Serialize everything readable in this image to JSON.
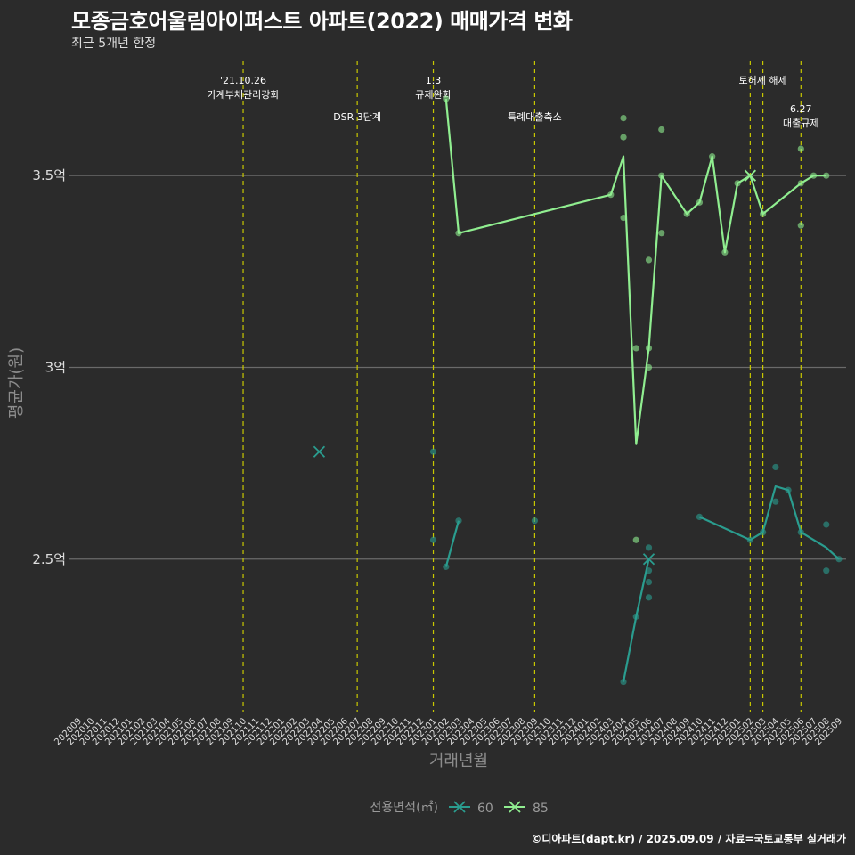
{
  "chart_data": {
    "type": "line",
    "title": "모종금호어울림아이퍼스트 아파트(2022) 매매가격 변화",
    "subtitle": "최근 5개년 한정",
    "xlabel": "거래년월",
    "ylabel": "평균가(원)",
    "caption": "©디아파트(dapt.kr) / 2025.09.09 / 자료=국토교통부 실거래가",
    "legend_title": "전용면적(㎡)",
    "categories": [
      "202009",
      "202010",
      "202011",
      "202012",
      "202101",
      "202102",
      "202103",
      "202104",
      "202105",
      "202106",
      "202107",
      "202108",
      "202109",
      "202110",
      "202111",
      "202112",
      "202201",
      "202202",
      "202203",
      "202204",
      "202205",
      "202206",
      "202207",
      "202208",
      "202209",
      "202210",
      "202211",
      "202212",
      "202301",
      "202302",
      "202303",
      "202304",
      "202305",
      "202306",
      "202307",
      "202308",
      "202309",
      "202310",
      "202311",
      "202312",
      "202401",
      "202402",
      "202403",
      "202404",
      "202405",
      "202406",
      "202407",
      "202408",
      "202409",
      "202410",
      "202411",
      "202412",
      "202501",
      "202502",
      "202503",
      "202504",
      "202505",
      "202506",
      "202507",
      "202508",
      "202509"
    ],
    "ylim": [
      2.1,
      3.8
    ],
    "yticks": [
      {
        "value": 2.5,
        "label": "2.5억"
      },
      {
        "value": 3.0,
        "label": "3억"
      },
      {
        "value": 3.5,
        "label": "3.5억"
      }
    ],
    "events": [
      {
        "x": "202110",
        "lines": [
          "'21.10.26",
          "가계부채관리강화"
        ],
        "row": 0
      },
      {
        "x": "202207",
        "lines": [
          "DSR 3단계"
        ],
        "row": 1
      },
      {
        "x": "202301",
        "lines": [
          "1.3",
          "규제완화"
        ],
        "row": 0
      },
      {
        "x": "202309",
        "lines": [
          "특례대출축소"
        ],
        "row": 1
      },
      {
        "x": "202502",
        "lines": [],
        "row": 0
      },
      {
        "x": "202503",
        "lines": [
          "토허제 해제"
        ],
        "row": 0
      },
      {
        "x": "202506",
        "lines": [
          "6.27",
          "대출규제"
        ],
        "row": 2
      }
    ],
    "series": [
      {
        "name": "60",
        "color": "#2a9d8f",
        "line": [
          [
            [
              "202302",
              2.48
            ],
            [
              "202303",
              2.6
            ]
          ],
          [
            [
              "202404",
              2.18
            ],
            [
              "202405",
              2.35
            ],
            [
              "202406",
              2.5
            ]
          ],
          [
            [
              "202410",
              2.61
            ],
            [
              "202502",
              2.55
            ],
            [
              "202503",
              2.57
            ],
            [
              "202504",
              2.69
            ],
            [
              "202505",
              2.68
            ],
            [
              "202506",
              2.57
            ],
            [
              "202508",
              2.53
            ],
            [
              "202509",
              2.5
            ]
          ]
        ],
        "points": [
          [
            "202301",
            2.78
          ],
          [
            "202301",
            2.55
          ],
          [
            "202302",
            2.48
          ],
          [
            "202303",
            2.6
          ],
          [
            "202309",
            2.6
          ],
          [
            "202404",
            2.18
          ],
          [
            "202405",
            2.35
          ],
          [
            "202406",
            2.53
          ],
          [
            "202406",
            2.47
          ],
          [
            "202406",
            2.44
          ],
          [
            "202406",
            2.4
          ],
          [
            "202410",
            2.61
          ],
          [
            "202502",
            2.55
          ],
          [
            "202503",
            2.57
          ],
          [
            "202504",
            2.74
          ],
          [
            "202504",
            2.65
          ],
          [
            "202505",
            2.68
          ],
          [
            "202506",
            2.57
          ],
          [
            "202508",
            2.59
          ],
          [
            "202508",
            2.47
          ],
          [
            "202509",
            2.5
          ]
        ],
        "crosses": [
          [
            "202204",
            2.78
          ],
          [
            "202406",
            2.5
          ]
        ]
      },
      {
        "name": "85",
        "color": "#90ee90",
        "line": [
          [
            [
              "202302",
              3.7
            ],
            [
              "202303",
              3.35
            ],
            [
              "202403",
              3.45
            ],
            [
              "202404",
              3.55
            ],
            [
              "202405",
              2.8
            ],
            [
              "202406",
              3.05
            ],
            [
              "202407",
              3.5
            ],
            [
              "202409",
              3.4
            ],
            [
              "202410",
              3.43
            ],
            [
              "202411",
              3.55
            ],
            [
              "202412",
              3.3
            ],
            [
              "202501",
              3.48
            ],
            [
              "202502",
              3.5
            ],
            [
              "202503",
              3.4
            ],
            [
              "202506",
              3.48
            ],
            [
              "202507",
              3.5
            ],
            [
              "202508",
              3.5
            ]
          ]
        ],
        "points": [
          [
            "202302",
            3.7
          ],
          [
            "202303",
            3.35
          ],
          [
            "202403",
            3.45
          ],
          [
            "202404",
            3.65
          ],
          [
            "202404",
            3.6
          ],
          [
            "202404",
            3.39
          ],
          [
            "202405",
            3.05
          ],
          [
            "202405",
            2.55
          ],
          [
            "202406",
            3.28
          ],
          [
            "202406",
            3.05
          ],
          [
            "202406",
            3.0
          ],
          [
            "202407",
            3.62
          ],
          [
            "202407",
            3.5
          ],
          [
            "202407",
            3.35
          ],
          [
            "202409",
            3.4
          ],
          [
            "202410",
            3.43
          ],
          [
            "202411",
            3.55
          ],
          [
            "202412",
            3.3
          ],
          [
            "202501",
            3.48
          ],
          [
            "202503",
            3.4
          ],
          [
            "202506",
            3.57
          ],
          [
            "202506",
            3.48
          ],
          [
            "202506",
            3.37
          ],
          [
            "202507",
            3.5
          ],
          [
            "202508",
            3.5
          ]
        ],
        "crosses": [
          [
            "202502",
            3.5
          ]
        ]
      }
    ]
  }
}
